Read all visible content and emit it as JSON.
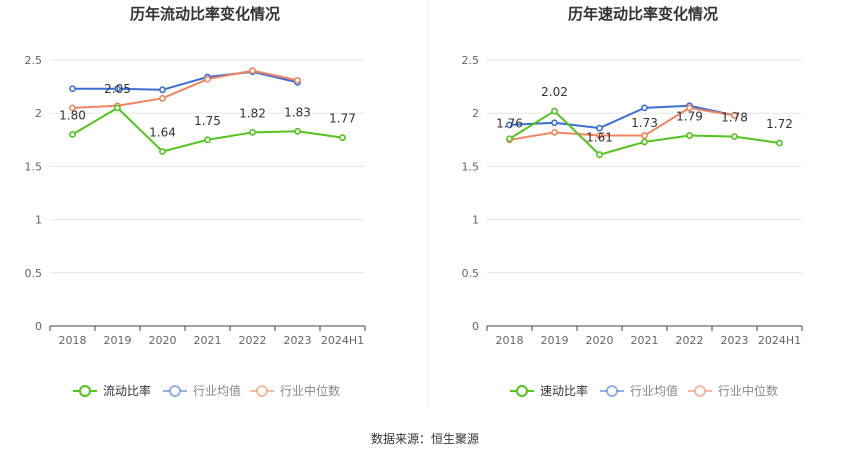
{
  "chart_data": [
    {
      "type": "line",
      "title": "历年流动比率变化情况",
      "categories": [
        "2018",
        "2019",
        "2020",
        "2021",
        "2022",
        "2023",
        "2024H1"
      ],
      "ylim": [
        0,
        2.5
      ],
      "yticks": [
        "0",
        "0.5",
        "1",
        "1.5",
        "2",
        "2.5"
      ],
      "grid": true,
      "legend_position": "bottom",
      "series": [
        {
          "name": "流动比率",
          "color": "#52c41a",
          "values": [
            1.8,
            2.05,
            1.64,
            1.75,
            1.82,
            1.83,
            1.77
          ],
          "labels": [
            "1.80",
            "2.05",
            "1.64",
            "1.75",
            "1.82",
            "1.83",
            "1.77"
          ]
        },
        {
          "name": "行业均值",
          "color": "#3b6fd8",
          "values": [
            2.23,
            2.23,
            2.22,
            2.34,
            2.39,
            2.29,
            null
          ]
        },
        {
          "name": "行业中位数",
          "color": "#f0855f",
          "values": [
            2.05,
            2.07,
            2.14,
            2.32,
            2.4,
            2.31,
            null
          ]
        }
      ]
    },
    {
      "type": "line",
      "title": "历年速动比率变化情况",
      "categories": [
        "2018",
        "2019",
        "2020",
        "2021",
        "2022",
        "2023",
        "2024H1"
      ],
      "ylim": [
        0,
        2.5
      ],
      "yticks": [
        "0",
        "0.5",
        "1",
        "1.5",
        "2",
        "2.5"
      ],
      "grid": true,
      "legend_position": "bottom",
      "series": [
        {
          "name": "速动比率",
          "color": "#52c41a",
          "values": [
            1.76,
            2.02,
            1.61,
            1.73,
            1.79,
            1.78,
            1.72
          ],
          "labels": [
            "1.76",
            "2.02",
            "1.61",
            "1.73",
            "1.79",
            "1.78",
            "1.72"
          ]
        },
        {
          "name": "行业均值",
          "color": "#3b6fd8",
          "values": [
            1.89,
            1.91,
            1.86,
            2.05,
            2.07,
            1.98,
            null
          ]
        },
        {
          "name": "行业中位数",
          "color": "#f0855f",
          "values": [
            1.75,
            1.82,
            1.79,
            1.79,
            2.05,
            1.98,
            null
          ]
        }
      ]
    }
  ],
  "footer": {
    "source": "数据来源：恒生聚源"
  }
}
